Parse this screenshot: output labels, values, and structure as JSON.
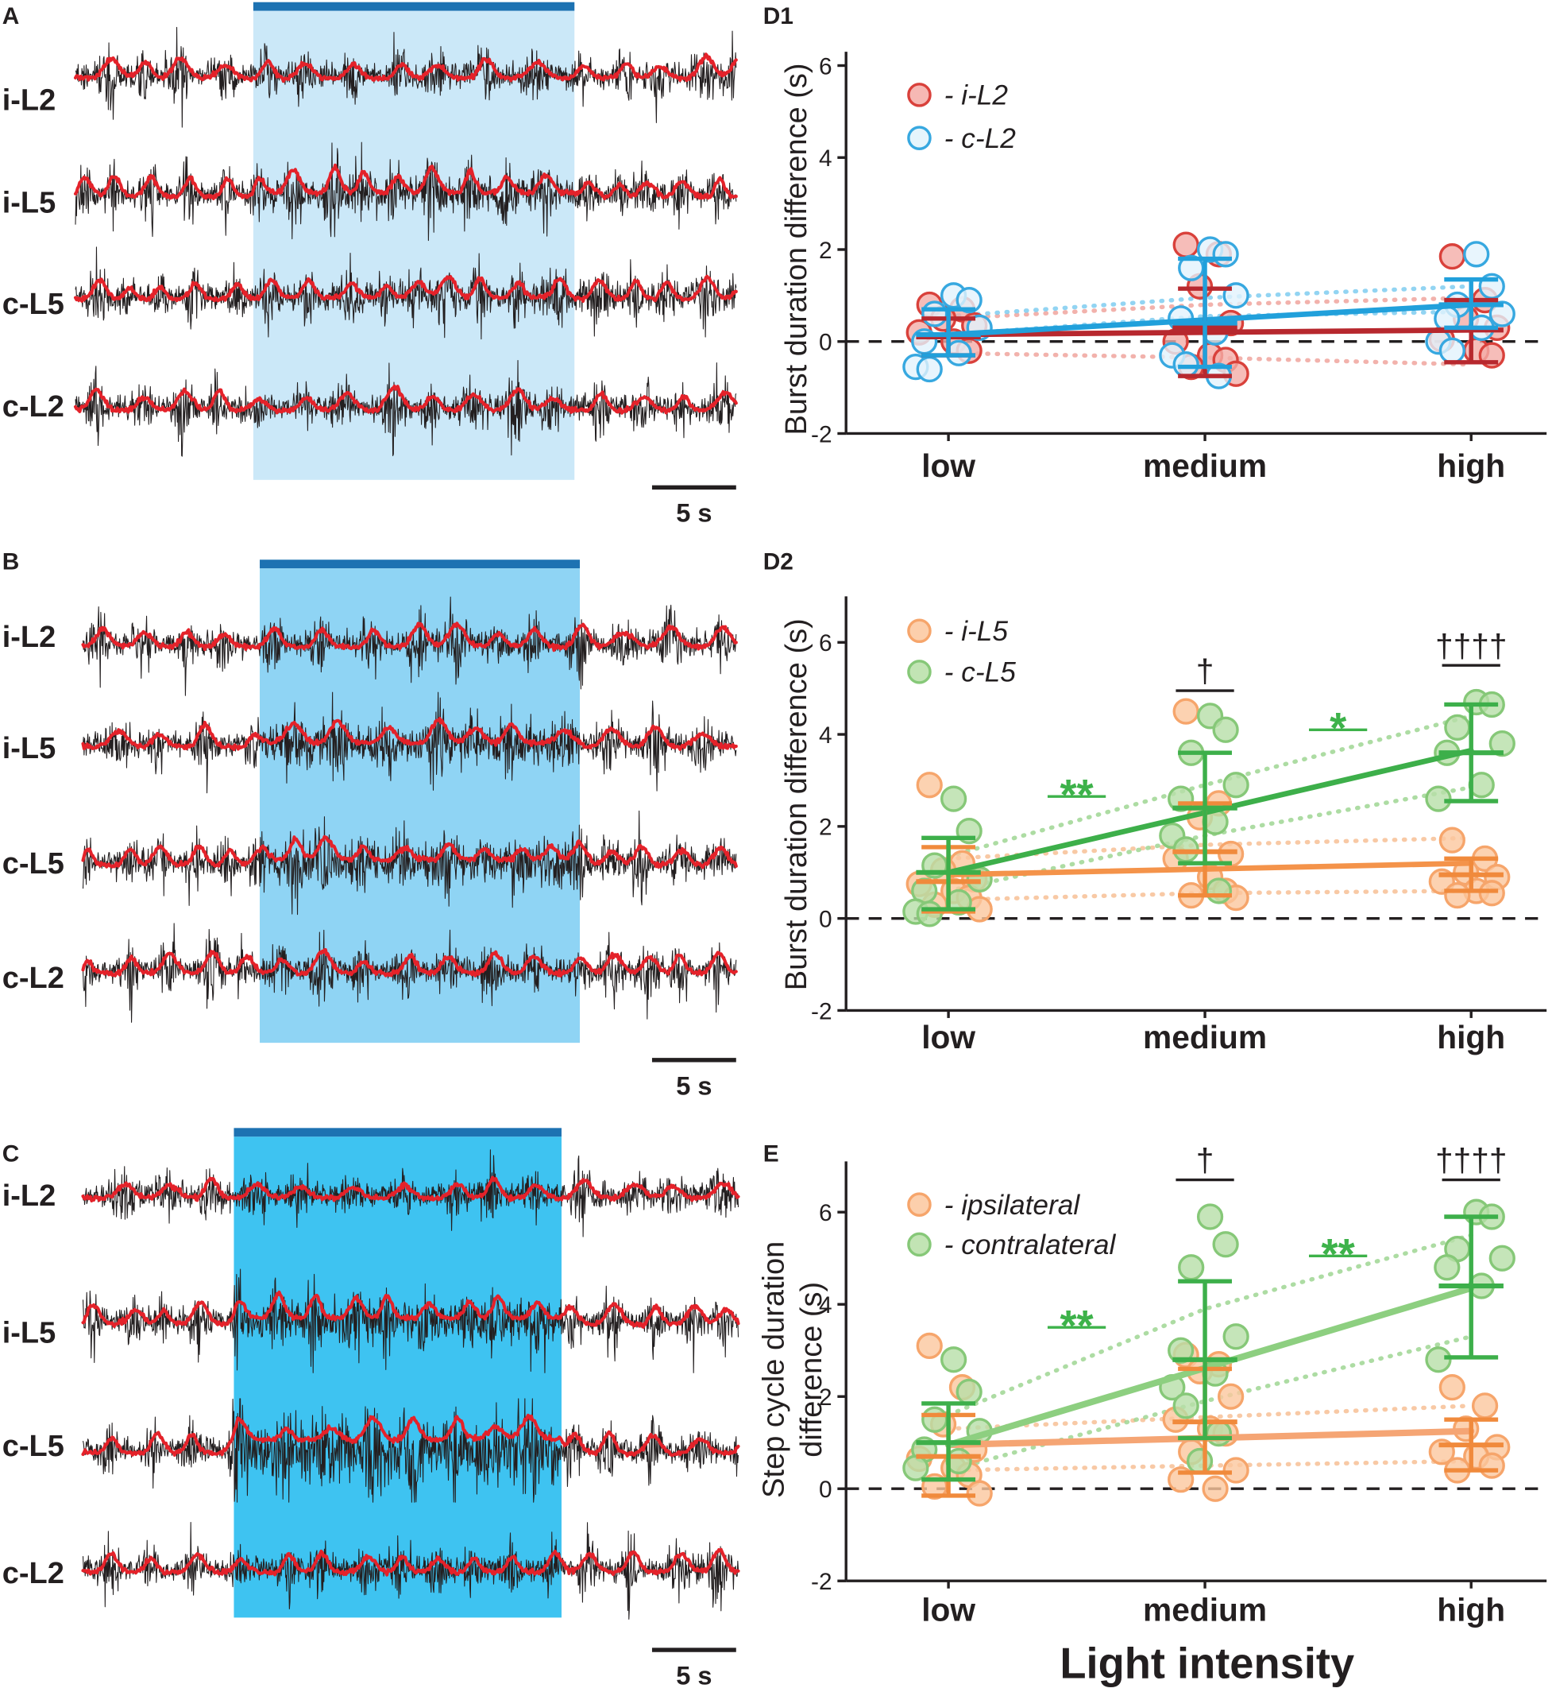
{
  "colors": {
    "raw_trace": "#231f20",
    "envelope": "#e4222a",
    "light_bar": "#1d72b2",
    "axis": "#231f20",
    "zero_line": "#231f20"
  },
  "recordings": [
    {
      "panel_label": "A",
      "traces": [
        "i-L2",
        "i-L5",
        "c-L5",
        "c-L2"
      ],
      "scale_bar": "5 s",
      "light_color": "#cbe8f8"
    },
    {
      "panel_label": "B",
      "traces": [
        "i-L2",
        "i-L5",
        "c-L5",
        "c-L2"
      ],
      "scale_bar": "5 s",
      "light_color": "#8fd4f4"
    },
    {
      "panel_label": "C",
      "traces": [
        "i-L2",
        "i-L5",
        "c-L5",
        "c-L2"
      ],
      "scale_bar": "5 s",
      "light_color": "#3ec3f1"
    }
  ],
  "chart_data": [
    {
      "panel_label": "D1",
      "type": "scatter",
      "title": "",
      "xlabel": "",
      "ylabel": [
        "Burst duration difference (s)"
      ],
      "categories": [
        "low",
        "medium",
        "high"
      ],
      "ylim": [
        -2,
        6.3
      ],
      "yticks": [
        -2,
        0,
        2,
        4,
        6
      ],
      "reference_line": 0,
      "series": [
        {
          "legend": "- i-L2",
          "stroke": "#d9413b",
          "fill": "#f4aca7",
          "trend_color": "#b7282e",
          "errorbar_color": "#b7282e",
          "dotted_color": "#f0a49d",
          "points": [
            [
              0.8,
              0.7,
              0.5,
              0.35,
              0.2,
              0.0,
              -0.2
            ],
            [
              2.1,
              1.9,
              1.2,
              0.4,
              0.0,
              -0.3,
              -0.4,
              -0.55,
              -0.7
            ],
            [
              1.85,
              0.9,
              0.5,
              0.3,
              0.05,
              -0.2,
              -0.3
            ]
          ],
          "mean": [
            0.1,
            0.3,
            0.25
          ],
          "err_upper": [
            0.5,
            1.15,
            0.9
          ],
          "err_lower": [
            -0.3,
            -0.75,
            -0.45
          ],
          "trend": [
            0.15,
            0.25
          ],
          "dotted": [
            [
              0.5,
              0.8,
              0.95
            ],
            [
              -0.25,
              -0.35,
              -0.5
            ]
          ]
        },
        {
          "legend": "- c-L2",
          "stroke": "#37a8e0",
          "fill": "#e2f3fc",
          "trend_color": "#21a0db",
          "errorbar_color": "#21a0db",
          "dotted_color": "#7fcdf0",
          "points": [
            [
              1.0,
              0.9,
              0.6,
              0.3,
              0.0,
              -0.25,
              -0.55,
              -0.6
            ],
            [
              2.0,
              1.9,
              1.6,
              1.0,
              0.5,
              0.2,
              -0.3,
              -0.5,
              -0.75
            ],
            [
              1.9,
              1.2,
              0.8,
              0.6,
              0.5,
              0.3,
              0.0,
              -0.2
            ]
          ],
          "mean": [
            0.15,
            0.4,
            0.8
          ],
          "err_upper": [
            0.7,
            1.8,
            1.35
          ],
          "err_lower": [
            -0.3,
            -0.55,
            0.3
          ],
          "trend": [
            0.15,
            0.8
          ],
          "dotted": [
            [
              0.55,
              0.95,
              1.2
            ],
            [
              0.15,
              0.55,
              0.65
            ]
          ]
        }
      ],
      "significance": []
    },
    {
      "panel_label": "D2",
      "type": "scatter",
      "title": "",
      "xlabel": "",
      "ylabel": [
        "Burst duration difference (s)"
      ],
      "categories": [
        "low",
        "medium",
        "high"
      ],
      "ylim": [
        -2,
        7
      ],
      "yticks": [
        -2,
        0,
        2,
        4,
        6
      ],
      "reference_line": 0,
      "series": [
        {
          "legend": "- i-L5",
          "stroke": "#f6a56b",
          "fill": "#fbc79d",
          "trend_color": "#f4934a",
          "errorbar_color": "#f08a3c",
          "dotted_color": "#f7bf95",
          "points": [
            [
              2.9,
              1.2,
              1.05,
              0.85,
              0.75,
              0.6,
              0.45,
              0.3,
              0.2
            ],
            [
              4.5,
              2.5,
              2.2,
              1.4,
              1.3,
              0.9,
              0.6,
              0.5,
              0.45
            ],
            [
              1.7,
              1.3,
              1.0,
              0.9,
              0.8,
              0.6,
              0.55,
              0.5
            ]
          ],
          "mean": [
            0.8,
            1.45,
            0.95
          ],
          "err_upper": [
            1.55,
            2.5,
            1.3
          ],
          "err_lower": [
            0.15,
            0.5,
            0.6
          ],
          "trend": [
            0.95,
            1.2
          ],
          "dotted": [
            [
              1.3,
              1.6,
              1.75
            ],
            [
              0.4,
              0.55,
              0.6
            ]
          ]
        },
        {
          "legend": "- c-L5",
          "stroke": "#86c878",
          "fill": "#b7dfa7",
          "trend_color": "#3daf4a",
          "errorbar_color": "#3daf4a",
          "dotted_color": "#9fd693",
          "points": [
            [
              2.6,
              1.9,
              1.15,
              0.85,
              0.6,
              0.35,
              0.15,
              0.1
            ],
            [
              4.4,
              4.1,
              3.6,
              2.9,
              2.6,
              2.1,
              1.8,
              1.5,
              0.6
            ],
            [
              4.7,
              4.65,
              4.15,
              3.8,
              3.6,
              2.9,
              2.6
            ]
          ],
          "mean": [
            1.0,
            2.4,
            3.6
          ],
          "err_upper": [
            1.75,
            3.6,
            4.65
          ],
          "err_lower": [
            0.2,
            1.2,
            2.55
          ],
          "trend": [
            1.0,
            3.65
          ],
          "dotted": [
            [
              1.35,
              2.9,
              4.4
            ],
            [
              0.6,
              1.8,
              2.85
            ]
          ]
        }
      ],
      "significance": [
        {
          "text": "**",
          "color": "#3db24a",
          "between": [
            0,
            1
          ],
          "level": 2.65
        },
        {
          "text": "*",
          "color": "#3db24a",
          "between": [
            1,
            2
          ],
          "level": 4.1
        },
        {
          "text": "†",
          "color": "#231f20",
          "between": [
            1
          ],
          "level": 4.95
        },
        {
          "text": "††††",
          "color": "#231f20",
          "between": [
            2
          ],
          "level": 5.5
        }
      ]
    },
    {
      "panel_label": "E",
      "type": "scatter",
      "title": "",
      "xlabel": "Light intensity",
      "ylabel": [
        "Step cycle duration",
        "difference (s)"
      ],
      "categories": [
        "low",
        "medium",
        "high"
      ],
      "ylim": [
        -2,
        7.1
      ],
      "yticks": [
        -2,
        0,
        2,
        4,
        6
      ],
      "reference_line": 0,
      "series": [
        {
          "legend": "- ipsilateral",
          "stroke": "#f6a56b",
          "fill": "#fbc79d",
          "trend_color": "#f5a574",
          "errorbar_color": "#f08a3c",
          "dotted_color": "#f7bf95",
          "points": [
            [
              3.1,
              2.2,
              1.4,
              0.85,
              0.65,
              0.45,
              0.3,
              0.05,
              -0.1
            ],
            [
              2.9,
              2.7,
              2.55,
              2.0,
              1.5,
              1.3,
              1.2,
              0.8,
              0.4,
              0.2,
              0.0
            ],
            [
              2.2,
              1.8,
              1.3,
              0.9,
              0.8,
              0.7,
              0.5,
              0.4
            ]
          ],
          "mean": [
            0.7,
            1.45,
            0.95
          ],
          "err_upper": [
            1.6,
            2.6,
            1.5
          ],
          "err_lower": [
            -0.15,
            0.35,
            0.4
          ],
          "trend": [
            0.95,
            1.25
          ],
          "dotted": [
            [
              1.3,
              1.55,
              1.8
            ],
            [
              0.4,
              0.5,
              0.6
            ]
          ]
        },
        {
          "legend": "- contralateral",
          "stroke": "#86c878",
          "fill": "#b7dfa7",
          "trend_color": "#8dcf80",
          "errorbar_color": "#3daf4a",
          "dotted_color": "#9fd693",
          "points": [
            [
              2.8,
              2.1,
              1.5,
              1.25,
              0.85,
              0.6,
              0.45
            ],
            [
              5.9,
              5.3,
              4.8,
              3.3,
              3.0,
              2.5,
              2.2,
              1.8,
              1.2,
              0.6
            ],
            [
              6.0,
              5.9,
              5.2,
              5.0,
              4.8,
              4.4,
              2.8
            ]
          ],
          "mean": [
            1.0,
            2.8,
            4.4
          ],
          "err_upper": [
            1.85,
            4.5,
            5.9
          ],
          "err_lower": [
            0.2,
            1.1,
            2.85
          ],
          "trend": [
            0.95,
            4.35
          ],
          "dotted": [
            [
              1.6,
              3.9,
              5.5
            ],
            [
              0.4,
              1.9,
              3.3
            ]
          ]
        }
      ],
      "significance": [
        {
          "text": "**",
          "color": "#3db24a",
          "between": [
            0,
            1
          ],
          "level": 3.5
        },
        {
          "text": "**",
          "color": "#3db24a",
          "between": [
            1,
            2
          ],
          "level": 5.05
        },
        {
          "text": "†",
          "color": "#231f20",
          "between": [
            1
          ],
          "level": 6.7
        },
        {
          "text": "††††",
          "color": "#231f20",
          "between": [
            2
          ],
          "level": 6.7
        }
      ]
    }
  ]
}
